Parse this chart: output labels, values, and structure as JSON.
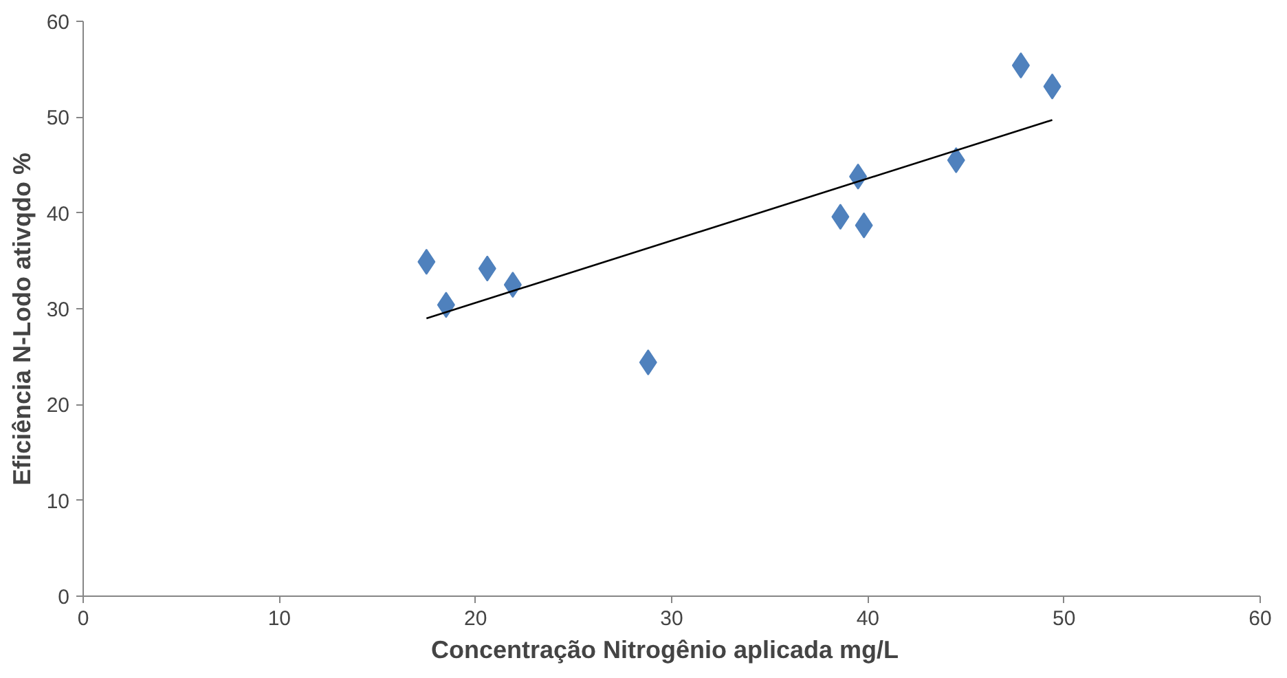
{
  "chart_data": {
    "type": "scatter",
    "xlabel": "Concentração Nitrogênio  aplicada  mg/L",
    "ylabel": "Eficiência N-Lodo ativqdo    %",
    "xlim": [
      0,
      60
    ],
    "ylim": [
      0,
      60
    ],
    "xticks": [
      0,
      10,
      20,
      30,
      40,
      50,
      60
    ],
    "yticks": [
      0,
      10,
      20,
      30,
      40,
      50,
      60
    ],
    "grid": false,
    "series": [
      {
        "color": "#4f81bd",
        "marker": "diamond",
        "x": [
          17.5,
          18.5,
          20.6,
          21.9,
          28.8,
          38.6,
          39.5,
          39.8,
          44.5,
          47.8,
          49.4
        ],
        "values": [
          34.9,
          30.4,
          34.2,
          32.5,
          24.4,
          39.6,
          43.8,
          38.7,
          45.5,
          55.4,
          53.2
        ]
      },
      {
        "type": "line",
        "marker": "none",
        "color": "#000000",
        "x": [
          17.5,
          49.4
        ],
        "values": [
          29.0,
          49.7
        ]
      }
    ]
  }
}
